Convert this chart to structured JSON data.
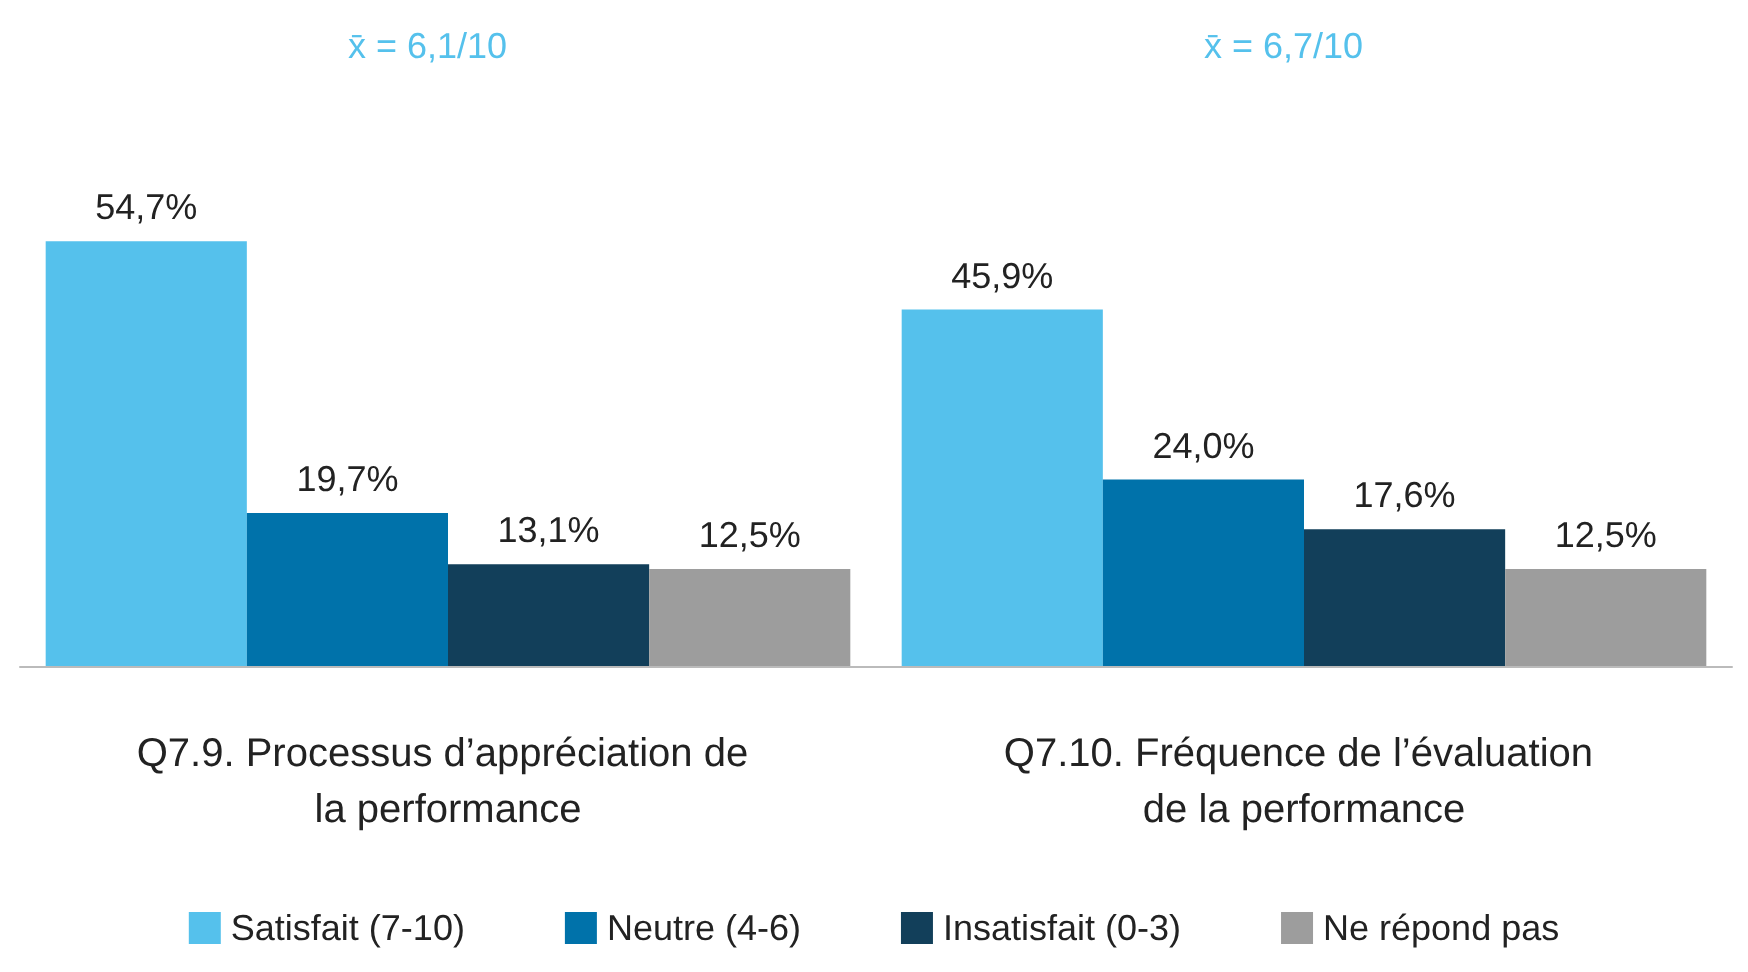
{
  "chart_data": {
    "type": "bar",
    "categories": [
      "Q7.9. Processus d’appréciation de la performance",
      "Q7.10. Fréquence de l’évaluation de la performance"
    ],
    "series": [
      {
        "name": "Satisfait (7-10)",
        "color": "#55c1ec",
        "values": [
          54.7,
          45.9
        ],
        "value_labels": [
          "54,7%",
          "45,9%"
        ]
      },
      {
        "name": "Neutre (4-6)",
        "color": "#0072aa",
        "values": [
          19.7,
          24.0
        ],
        "value_labels": [
          "19,7%",
          "24,0%"
        ]
      },
      {
        "name": "Insatisfait (0-3)",
        "color": "#123f5a",
        "values": [
          13.1,
          17.6
        ],
        "value_labels": [
          "13,1%",
          "17,6%"
        ]
      },
      {
        "name": "Ne répond pas",
        "color": "#9d9d9d",
        "values": [
          12.5,
          12.5
        ],
        "value_labels": [
          "12,5%",
          "12,5%"
        ]
      }
    ],
    "annotations": [
      "x̄ = 6,1/10",
      "x̄ = 6,7/10"
    ],
    "legend": "bottom"
  }
}
